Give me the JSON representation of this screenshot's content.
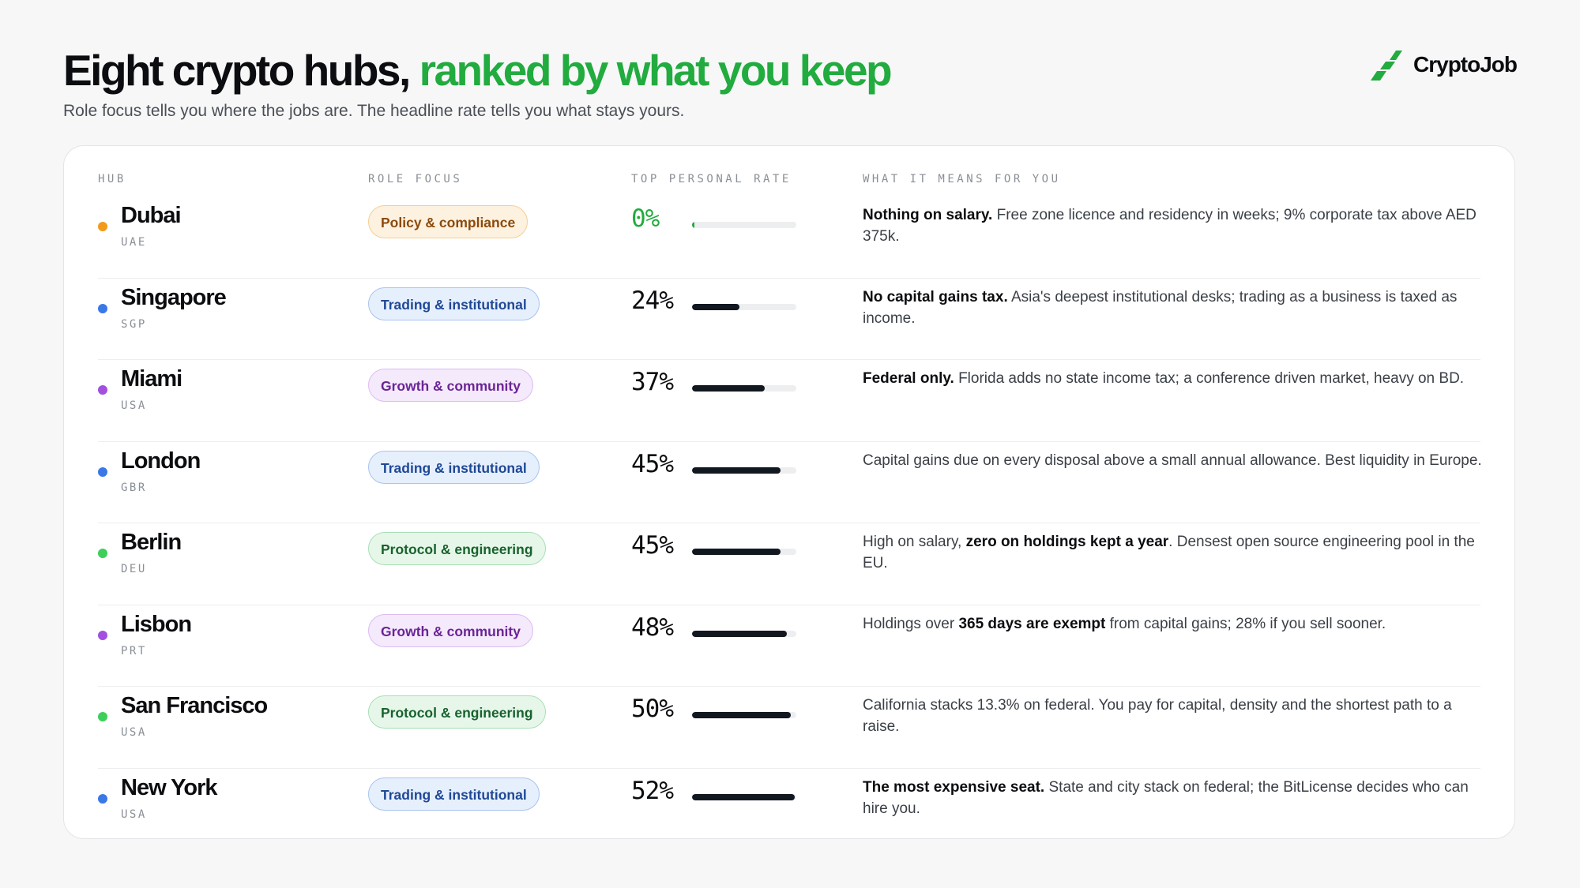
{
  "header": {
    "title_main": "Eight crypto hubs,",
    "title_accent": "ranked by what you keep",
    "subtitle": "Role focus tells you where the jobs are. The headline rate tells you what stays yours."
  },
  "brand": {
    "name": "CryptoJob",
    "icon": "cryptojob-logo-icon",
    "color": "#22ab3e"
  },
  "table": {
    "columns": [
      "HUB",
      "ROLE FOCUS",
      "TOP PERSONAL RATE",
      "WHAT IT MEANS FOR YOU"
    ],
    "rows": [
      {
        "name": "Dubai",
        "code": "UAE",
        "dot_color": "#f29a1c",
        "role": "Policy & compliance",
        "role_style": "policy",
        "rate": "0%",
        "rate_value": 0,
        "note_bold": "Nothing on salary.",
        "note_text": " Free zone licence and residency in weeks; 9% corporate tax above AED 375k.",
        "note_tail": ""
      },
      {
        "name": "Singapore",
        "code": "SGP",
        "dot_color": "#3a78e8",
        "role": "Trading & institutional",
        "role_style": "trading",
        "rate": "24%",
        "rate_value": 24,
        "note_bold": "No capital gains tax.",
        "note_text": " Asia's deepest institutional desks; trading as a business is taxed as income.",
        "note_tail": ""
      },
      {
        "name": "Miami",
        "code": "USA",
        "dot_color": "#a150e0",
        "role": "Growth & community",
        "role_style": "growth",
        "rate": "37%",
        "rate_value": 37,
        "note_bold": "Federal only.",
        "note_text": " Florida adds no state income tax; a conference driven market, heavy on BD.",
        "note_tail": ""
      },
      {
        "name": "London",
        "code": "GBR",
        "dot_color": "#3a78e8",
        "role": "Trading & institutional",
        "role_style": "trading",
        "rate": "45%",
        "rate_value": 45,
        "note_bold": "",
        "note_text": "Capital gains due on every disposal above a small annual allowance. Best liquidity in Europe.",
        "note_tail": ""
      },
      {
        "name": "Berlin",
        "code": "DEU",
        "dot_color": "#3ccf5a",
        "role": "Protocol & engineering",
        "role_style": "protocol",
        "rate": "45%",
        "rate_value": 45,
        "note_pre": "High on salary, ",
        "note_bold": "zero on holdings kept a year",
        "note_text": ". Densest open source engineering pool in the EU.",
        "note_tail": ""
      },
      {
        "name": "Lisbon",
        "code": "PRT",
        "dot_color": "#a150e0",
        "role": "Growth & community",
        "role_style": "growth",
        "rate": "48%",
        "rate_value": 48,
        "note_pre": "Holdings over ",
        "note_bold": "365 days are exempt",
        "note_text": " from capital gains; 28% if you sell sooner.",
        "note_tail": ""
      },
      {
        "name": "San Francisco",
        "code": "USA",
        "dot_color": "#3ccf5a",
        "role": "Protocol & engineering",
        "role_style": "protocol",
        "rate": "50%",
        "rate_value": 50,
        "note_bold": "",
        "note_text": "California stacks 13.3% on federal. You pay for capital, density and the shortest path to a raise.",
        "note_tail": ""
      },
      {
        "name": "New York",
        "code": "USA",
        "dot_color": "#3a78e8",
        "role": "Trading & institutional",
        "role_style": "trading",
        "rate": "52%",
        "rate_value": 52,
        "note_bold": "The most expensive seat.",
        "note_text": " State and city stack on federal; the BitLicense decides who can hire you.",
        "note_tail": ""
      }
    ]
  }
}
